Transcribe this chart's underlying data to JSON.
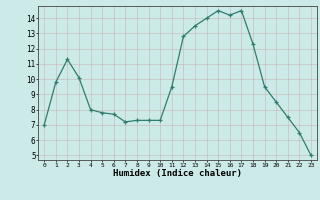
{
  "x": [
    0,
    1,
    2,
    3,
    4,
    5,
    6,
    7,
    8,
    9,
    10,
    11,
    12,
    13,
    14,
    15,
    16,
    17,
    18,
    19,
    20,
    21,
    22,
    23
  ],
  "y": [
    7.0,
    9.8,
    11.3,
    10.1,
    8.0,
    7.8,
    7.7,
    7.2,
    7.3,
    7.3,
    7.3,
    9.5,
    12.8,
    13.5,
    14.0,
    14.5,
    14.2,
    14.5,
    12.3,
    9.5,
    8.5,
    7.5,
    6.5,
    5.0
  ],
  "xlabel": "Humidex (Indice chaleur)",
  "line_color": "#2e7d6e",
  "marker": "+",
  "bg_color": "#cceae8",
  "grid_color": "#b0c8c8",
  "yticks": [
    5,
    6,
    7,
    8,
    9,
    10,
    11,
    12,
    13,
    14
  ],
  "xticks": [
    0,
    1,
    2,
    3,
    4,
    5,
    6,
    7,
    8,
    9,
    10,
    11,
    12,
    13,
    14,
    15,
    16,
    17,
    18,
    19,
    20,
    21,
    22,
    23
  ]
}
